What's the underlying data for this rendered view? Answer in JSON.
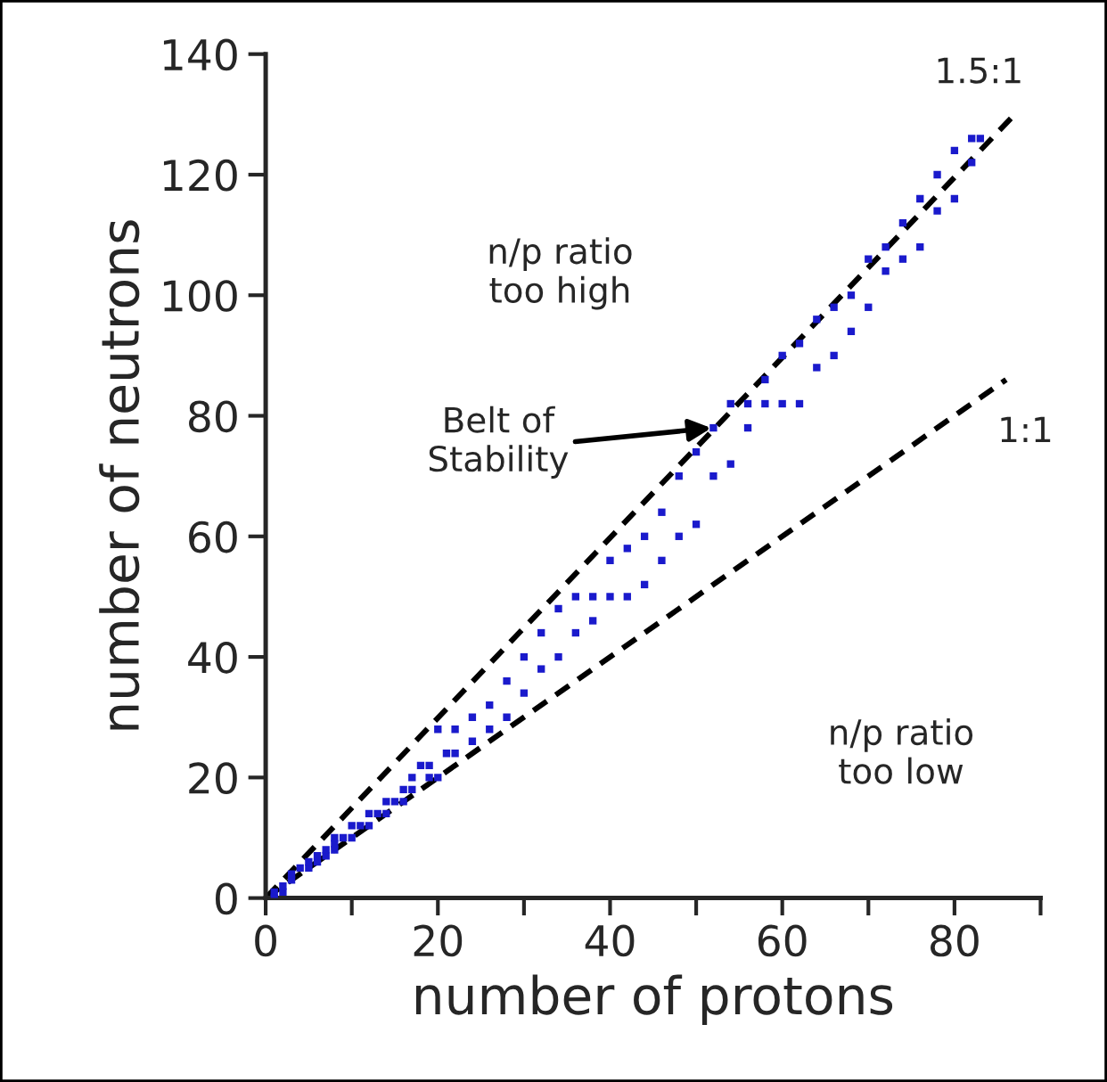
{
  "chart_data": {
    "type": "scatter",
    "xlabel": "number of protons",
    "ylabel": "number of neutrons",
    "xlim": [
      0,
      90
    ],
    "ylim": [
      0,
      140
    ],
    "xticks": [
      0,
      {
        "value": 10,
        "label": null
      },
      20,
      {
        "value": 30,
        "label": null
      },
      40,
      {
        "value": 50,
        "label": null
      },
      60,
      {
        "value": 70,
        "label": null
      },
      80,
      {
        "value": 90,
        "label": null
      }
    ],
    "yticks": [
      0,
      20,
      40,
      60,
      80,
      100,
      120,
      140
    ],
    "grid": false,
    "legend": false,
    "series": [
      {
        "marker": "square",
        "color": "#1a1acc",
        "x": [
          1,
          1,
          2,
          2,
          3,
          3,
          4,
          5,
          5,
          6,
          6,
          7,
          7,
          8,
          8,
          8,
          9,
          10,
          10,
          11,
          12,
          12,
          13,
          14,
          14,
          15,
          16,
          16,
          17,
          17,
          18,
          19,
          19,
          20,
          20,
          21,
          22,
          22,
          24,
          24,
          26,
          26,
          28,
          28,
          30,
          30,
          32,
          32,
          34,
          34,
          36,
          36,
          38,
          38,
          40,
          40,
          42,
          42,
          44,
          44,
          46,
          46,
          48,
          48,
          50,
          50,
          52,
          52,
          54,
          54,
          56,
          56,
          58,
          58,
          60,
          60,
          62,
          62,
          64,
          64,
          66,
          66,
          68,
          68,
          70,
          70,
          72,
          72,
          74,
          74,
          76,
          76,
          78,
          78,
          80,
          80,
          82,
          82,
          83
        ],
        "values": [
          0,
          1,
          1,
          2,
          3,
          4,
          5,
          5,
          6,
          6,
          7,
          7,
          8,
          8,
          9,
          10,
          10,
          10,
          12,
          12,
          12,
          14,
          14,
          14,
          16,
          16,
          16,
          18,
          18,
          20,
          22,
          20,
          22,
          20,
          28,
          24,
          24,
          28,
          26,
          30,
          28,
          32,
          30,
          36,
          34,
          40,
          38,
          44,
          40,
          48,
          44,
          50,
          46,
          50,
          50,
          56,
          50,
          58,
          52,
          60,
          56,
          64,
          60,
          70,
          62,
          74,
          70,
          78,
          72,
          82,
          78,
          82,
          82,
          86,
          82,
          90,
          82,
          92,
          88,
          96,
          90,
          98,
          94,
          100,
          98,
          106,
          104,
          108,
          106,
          112,
          108,
          116,
          114,
          120,
          116,
          124,
          122,
          126,
          126
        ]
      },
      {
        "type": "line",
        "marker": "none",
        "color": "#000000",
        "line_style": "dashed",
        "x": [
          0,
          87
        ],
        "values": [
          0,
          130
        ]
      },
      {
        "type": "line",
        "marker": "none",
        "color": "#000000",
        "line_style": "dashed",
        "x": [
          0,
          86
        ],
        "values": [
          0,
          86
        ]
      }
    ],
    "annotations": [
      {
        "text": "1.5:1",
        "x": 87,
        "y": 130
      },
      {
        "text": "1:1",
        "x": 86,
        "y": 86
      },
      "Belt of\nStability",
      "n/p ratio\ntoo high",
      "n/p ratio\ntoo low"
    ]
  }
}
